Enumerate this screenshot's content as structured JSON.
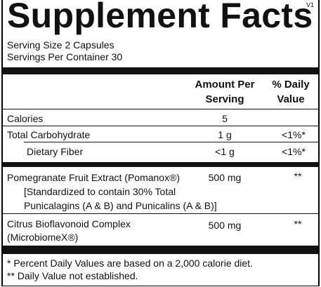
{
  "header": {
    "title": "Supplement Facts",
    "version": "V1",
    "serving_size": "Serving Size 2 Capsules",
    "servings_per_container": "Servings Per Container 30"
  },
  "table": {
    "columns": [
      "Amount Per Serving",
      "% Daily Value"
    ],
    "rows": [
      {
        "name": "Calories",
        "amount": "5"
      },
      {
        "name": "Total Carbohydrate",
        "amount": "1 g",
        "daily_value": "<1%*"
      },
      {
        "name": "Dietary Fiber",
        "amount": "<1 g",
        "daily_value": "<1%*"
      },
      {
        "name": "Pomegranate Fruit Extract (Pomanox®)",
        "amount": "500 mg",
        "daily_value": "**",
        "note": [
          "[Standardized to contain 30% Total",
          "Punicalagins (A & B) and Punicalins (A & B)]"
        ]
      },
      {
        "name": "Citrus Bioflavonoid Complex",
        "name_2": "(MicrobiomeX®)",
        "amount": "500 mg",
        "daily_value": "**"
      }
    ]
  },
  "footnotes": [
    "* Percent Daily Values are based on a 2,000 calorie diet.",
    "** Daily Value not established."
  ]
}
